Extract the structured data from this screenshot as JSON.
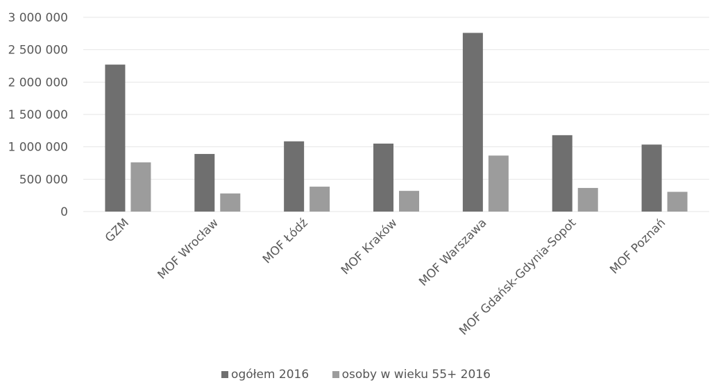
{
  "chart_data": {
    "type": "bar",
    "categories": [
      "GZM",
      "MOF Wrocław",
      "MOF Łódź",
      "MOF Kraków",
      "MOF Warszawa",
      "MOF Gdańsk-Gdynia-Sopot",
      "MOF Poznań"
    ],
    "series": [
      {
        "name": "ogółem 2016",
        "color": "#6f6f6f",
        "values": [
          2270000,
          890000,
          1085000,
          1050000,
          2760000,
          1180000,
          1035000
        ]
      },
      {
        "name": "osoby w wieku 55+ 2016",
        "color": "#9c9c9c",
        "values": [
          760000,
          280000,
          385000,
          320000,
          865000,
          365000,
          305000
        ]
      }
    ],
    "y_ticks": [
      "0",
      "500 000",
      "1 000 000",
      "1 500 000",
      "2 000 000",
      "2 500 000",
      "3 000 000"
    ],
    "ylim": [
      0,
      3000000
    ],
    "title": "",
    "xlabel": "",
    "ylabel": "",
    "grid": true,
    "legend_position": "bottom"
  }
}
